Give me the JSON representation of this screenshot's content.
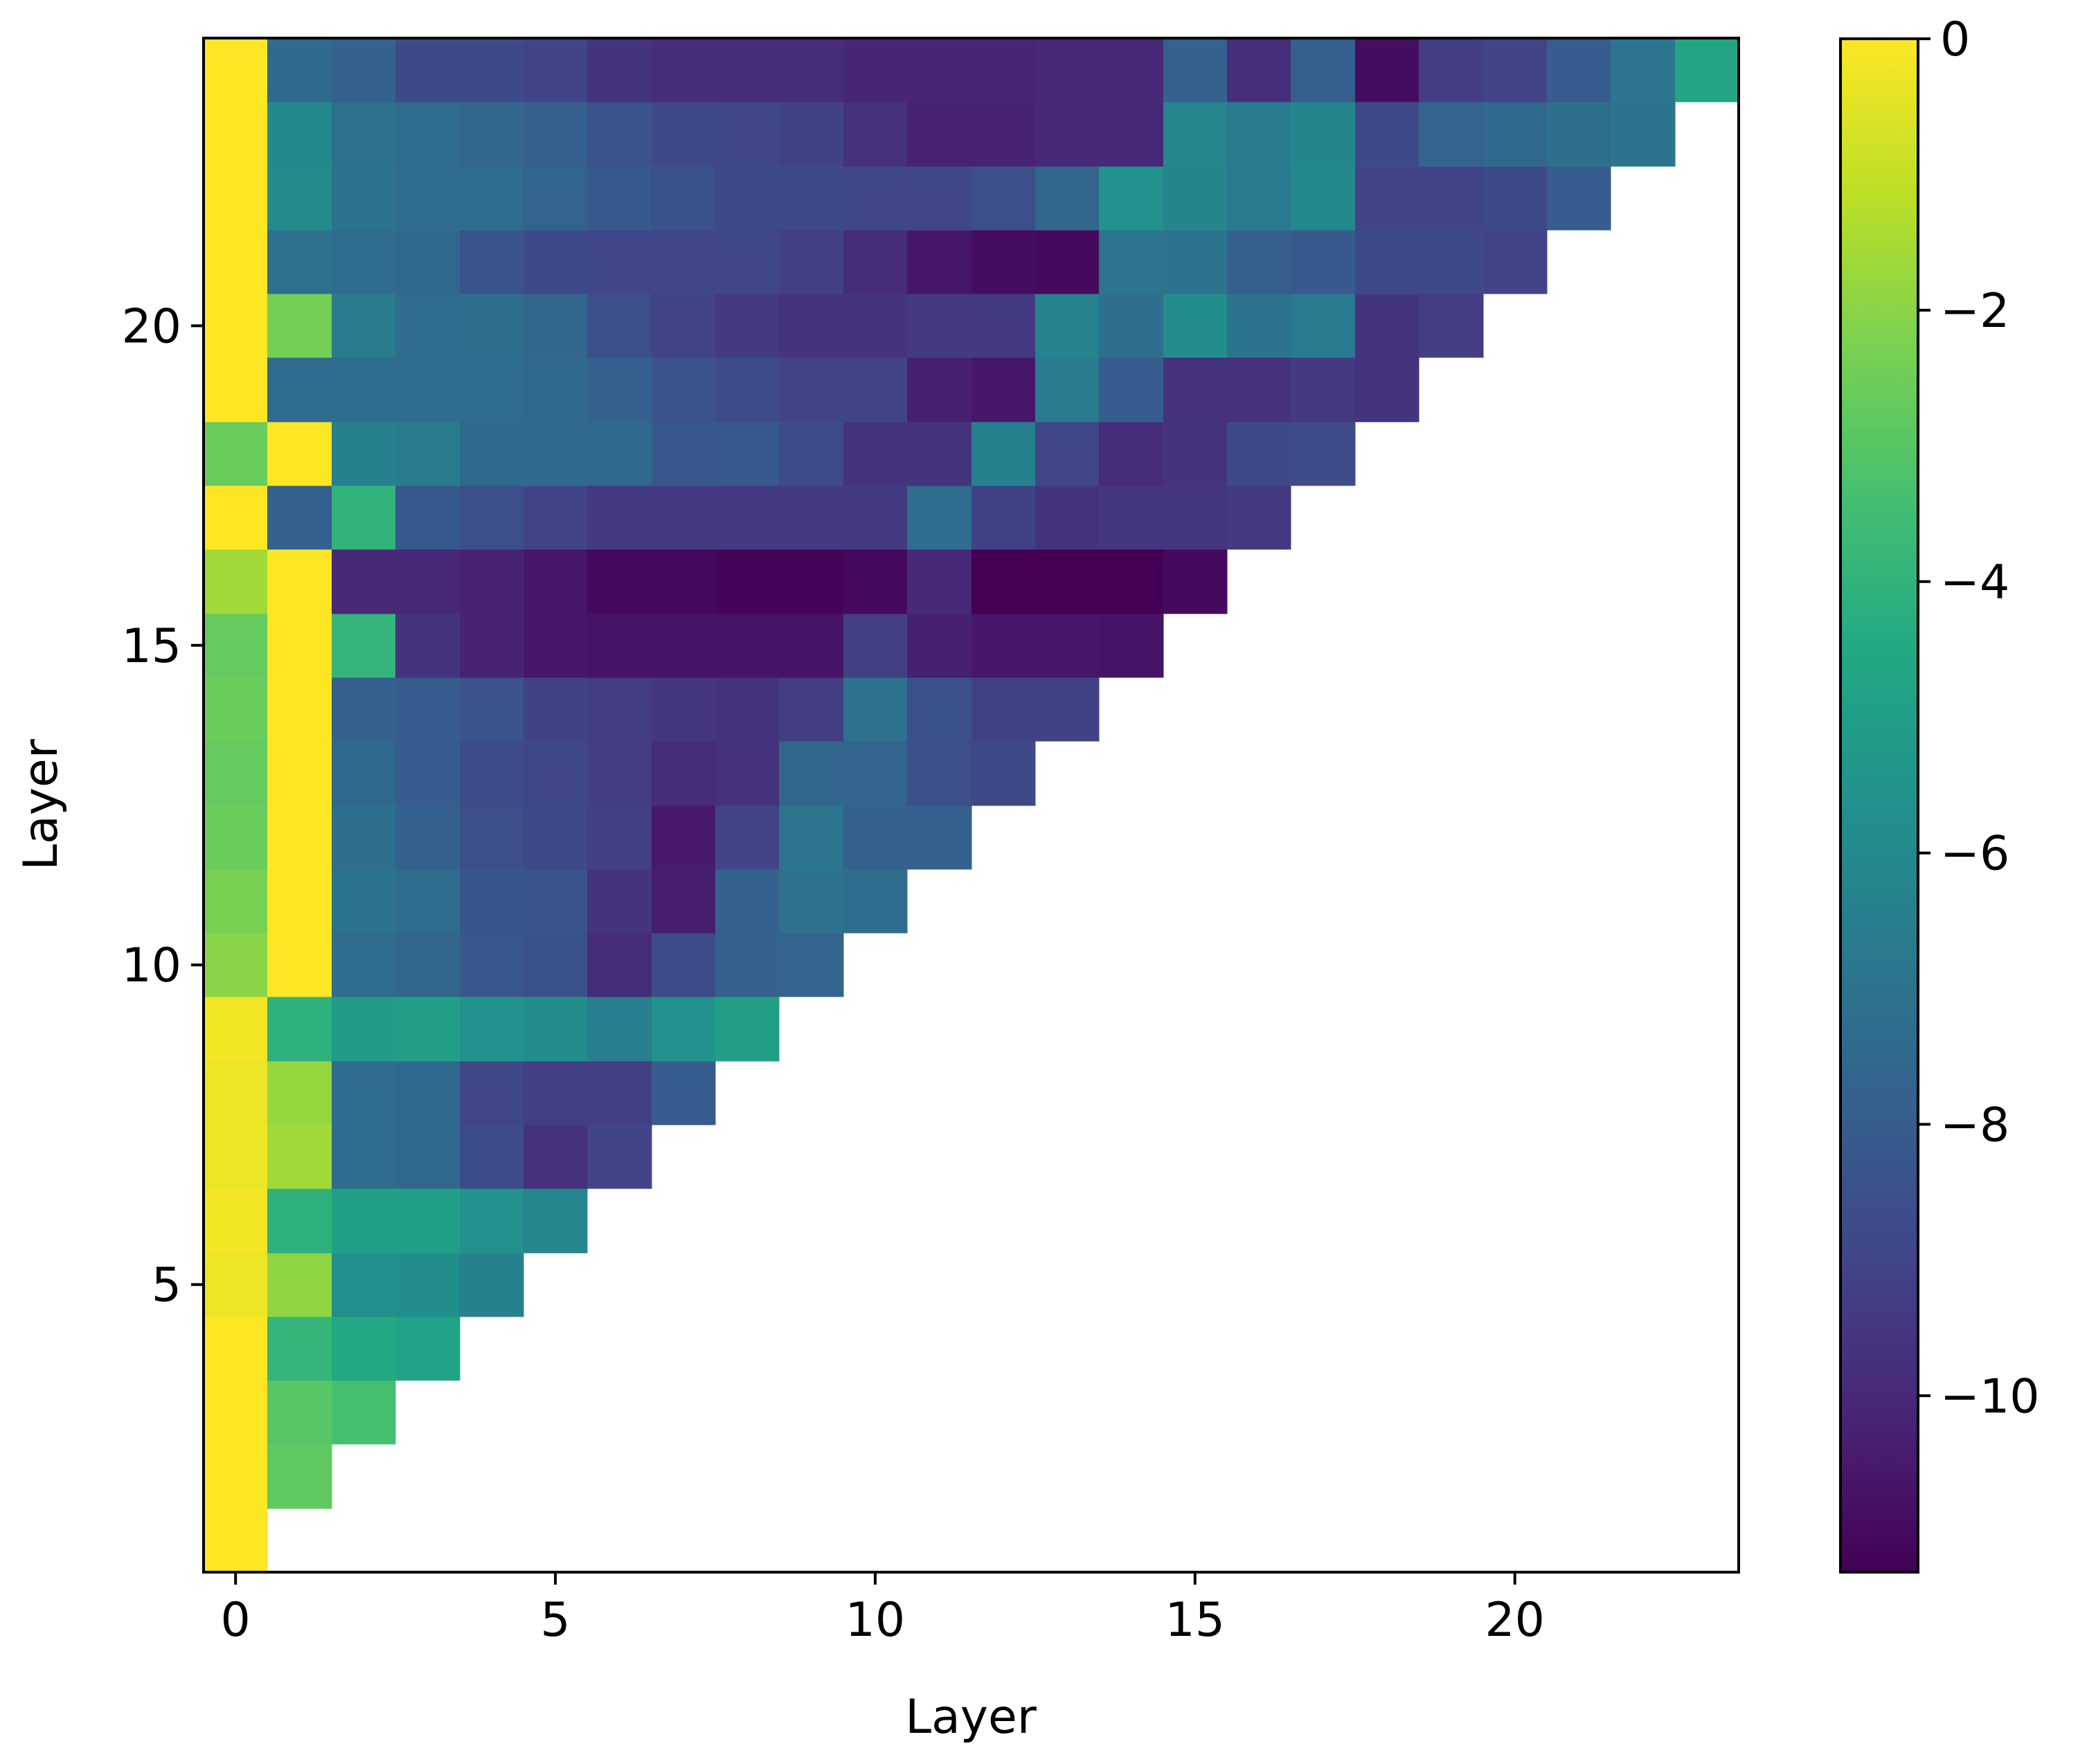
{
  "chart_data": {
    "type": "heatmap",
    "xlabel": "Layer",
    "ylabel": "Layer",
    "x_range": [
      -0.5,
      23.5
    ],
    "y_range": [
      0.5,
      24.5
    ],
    "x_ticks": [
      0,
      5,
      10,
      15,
      20
    ],
    "y_ticks": [
      5,
      10,
      15,
      20
    ],
    "colormap": "viridis",
    "color_range": [
      -11.3,
      0
    ],
    "colorbar_ticks": [
      0,
      -2,
      -4,
      -6,
      -8,
      -10
    ],
    "colorbar_tick_labels": [
      "0",
      "−2",
      "−4",
      "−6",
      "−8",
      "−10"
    ],
    "grid": false,
    "rows": [
      {
        "layer": 1,
        "values": [
          0
        ]
      },
      {
        "layer": 2,
        "values": [
          0,
          -2.8
        ]
      },
      {
        "layer": 3,
        "values": [
          0,
          -3.0,
          -3.4
        ]
      },
      {
        "layer": 4,
        "values": [
          0,
          -3.9,
          -4.5,
          -4.8
        ]
      },
      {
        "layer": 5,
        "values": [
          -0.3,
          -1.9,
          -5.7,
          -5.8,
          -6.4
        ]
      },
      {
        "layer": 6,
        "values": [
          -0.2,
          -4.1,
          -4.9,
          -4.9,
          -5.6,
          -6.1
        ]
      },
      {
        "layer": 7,
        "values": [
          -0.3,
          -1.6,
          -7.3,
          -7.5,
          -8.7,
          -9.7,
          -9.0
        ]
      },
      {
        "layer": 8,
        "values": [
          -0.3,
          -1.8,
          -7.3,
          -7.5,
          -8.9,
          -9.2,
          -9.2,
          -8.0
        ]
      },
      {
        "layer": 9,
        "values": [
          -0.2,
          -4.1,
          -5.1,
          -5.0,
          -5.6,
          -5.8,
          -6.5,
          -5.6,
          -5.0
        ]
      },
      {
        "layer": 10,
        "values": [
          -2.0,
          0,
          -7.3,
          -7.6,
          -8.2,
          -8.5,
          -9.9,
          -8.7,
          -7.8,
          -7.7
        ]
      },
      {
        "layer": 11,
        "values": [
          -2.3,
          0,
          -7.0,
          -7.3,
          -8.3,
          -8.4,
          -9.6,
          -10.4,
          -7.8,
          -7.1,
          -7.3
        ]
      },
      {
        "layer": 12,
        "values": [
          -2.6,
          0,
          -7.2,
          -7.8,
          -8.6,
          -8.8,
          -9.2,
          -10.5,
          -9.0,
          -6.9,
          -7.8,
          -7.8
        ]
      },
      {
        "layer": 13,
        "values": [
          -2.7,
          0,
          -7.5,
          -8.0,
          -8.7,
          -8.9,
          -9.3,
          -9.9,
          -9.7,
          -7.6,
          -7.7,
          -8.6,
          -8.8
        ]
      },
      {
        "layer": 14,
        "values": [
          -2.6,
          0,
          -7.8,
          -8.0,
          -8.4,
          -9.1,
          -9.3,
          -9.5,
          -9.6,
          -9.3,
          -7.1,
          -8.5,
          -9.1,
          -9.1
        ]
      },
      {
        "layer": 15,
        "values": [
          -2.7,
          0,
          -3.9,
          -9.6,
          -10.2,
          -10.6,
          -10.7,
          -10.7,
          -10.7,
          -10.7,
          -9.2,
          -10.3,
          -10.6,
          -10.6,
          -10.7
        ]
      },
      {
        "layer": 16,
        "values": [
          -1.6,
          0,
          -10.0,
          -10.0,
          -10.2,
          -10.6,
          -11.0,
          -11.0,
          -11.2,
          -11.2,
          -11.0,
          -10.0,
          -11.3,
          -11.3,
          -11.3,
          -11.0
        ]
      },
      {
        "layer": 17,
        "values": [
          0,
          -7.8,
          -4.0,
          -8.1,
          -8.6,
          -9.0,
          -9.4,
          -9.4,
          -9.4,
          -9.4,
          -9.4,
          -7.3,
          -9.1,
          -9.6,
          -9.5,
          -9.5,
          -9.4
        ]
      },
      {
        "layer": 18,
        "values": [
          -2.6,
          0,
          -6.4,
          -6.6,
          -7.4,
          -7.4,
          -7.5,
          -8.2,
          -8.1,
          -8.7,
          -9.6,
          -9.6,
          -6.4,
          -8.9,
          -9.9,
          -9.6,
          -8.8,
          -8.7
        ]
      },
      {
        "layer": 19,
        "values": [
          0,
          -7.3,
          -7.3,
          -7.3,
          -7.3,
          -7.5,
          -7.8,
          -8.4,
          -8.7,
          -9.0,
          -9.0,
          -10.3,
          -10.6,
          -6.6,
          -8.0,
          -9.7,
          -9.7,
          -9.4,
          -9.6
        ]
      },
      {
        "layer": 20,
        "values": [
          0,
          -2.4,
          -6.6,
          -7.3,
          -7.2,
          -7.6,
          -8.6,
          -9.0,
          -9.4,
          -9.6,
          -9.6,
          -9.4,
          -9.4,
          -6.3,
          -7.2,
          -5.8,
          -7.0,
          -6.7,
          -9.6,
          -9.3
        ]
      },
      {
        "layer": 21,
        "values": [
          0,
          -7.1,
          -7.3,
          -7.5,
          -8.4,
          -8.8,
          -8.9,
          -8.9,
          -8.9,
          -9.2,
          -9.9,
          -10.6,
          -10.9,
          -11.0,
          -6.9,
          -7.0,
          -7.9,
          -8.1,
          -8.8,
          -8.8,
          -9.0
        ]
      },
      {
        "layer": 22,
        "values": [
          0,
          -5.9,
          -7.0,
          -7.3,
          -7.3,
          -7.7,
          -8.1,
          -8.5,
          -8.8,
          -8.8,
          -8.9,
          -8.9,
          -8.6,
          -7.6,
          -5.6,
          -6.2,
          -6.7,
          -6.0,
          -9.0,
          -9.0,
          -8.8,
          -8.0
        ]
      },
      {
        "layer": 23,
        "values": [
          0,
          -6.0,
          -7.1,
          -7.3,
          -7.6,
          -7.9,
          -8.4,
          -8.8,
          -8.9,
          -9.1,
          -9.7,
          -10.2,
          -10.2,
          -10.0,
          -10.0,
          -6.1,
          -6.6,
          -6.2,
          -8.8,
          -7.7,
          -7.5,
          -7.2,
          -7.0
        ]
      },
      {
        "layer": 24,
        "values": [
          0,
          -7.4,
          -7.8,
          -8.8,
          -8.8,
          -9.0,
          -9.6,
          -9.9,
          -9.9,
          -9.9,
          -10.1,
          -10.1,
          -10.1,
          -10.0,
          -10.0,
          -7.8,
          -9.8,
          -7.9,
          -10.9,
          -9.3,
          -9.0,
          -8.0,
          -6.9,
          -4.7
        ]
      }
    ]
  }
}
